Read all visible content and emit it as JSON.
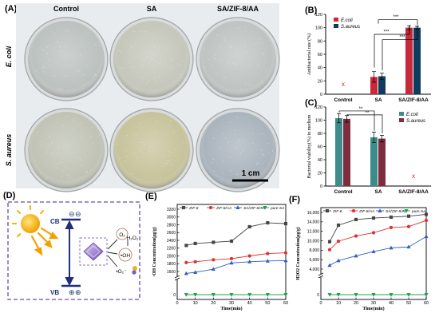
{
  "panelA": {
    "letter": "(A)",
    "columns": [
      "Control",
      "SA",
      "SA/ZIF-8/AA"
    ],
    "rows": [
      "E. coli",
      "S. aureus"
    ],
    "scale_label": "1 cm",
    "dish_tints": [
      [
        "#bcc2bf",
        "#c5c7bb",
        "#bfc4c3"
      ],
      [
        "#c0c3b5",
        "#c7c39c",
        "#aab4bd"
      ]
    ]
  },
  "chart_data": [
    {
      "id": "B",
      "letter": "(B)",
      "type": "bar",
      "ylabel": "Antibacterial rate (%)",
      "ylim": [
        0,
        120
      ],
      "yticks": [
        0,
        20,
        40,
        60,
        80,
        100,
        120
      ],
      "categories": [
        "Control",
        "SA",
        "SA/ZIF-8/AA"
      ],
      "series": [
        {
          "name": "E.coli",
          "color": "#c9283a",
          "values": [
            0,
            26,
            100
          ],
          "errors": [
            0,
            8,
            3
          ]
        },
        {
          "name": "S.aureus",
          "color": "#0f3c5e",
          "values": [
            0,
            27,
            100
          ],
          "errors": [
            0,
            5,
            2
          ]
        }
      ],
      "missing_marker": {
        "label": "x",
        "category": "Control"
      },
      "significance": [
        "***",
        "***",
        "***"
      ],
      "legend": "top-left"
    },
    {
      "id": "C",
      "letter": "(C)",
      "type": "bar",
      "ylabel": "Bacterial viability(%) in medium",
      "ylim": [
        0,
        120
      ],
      "yticks": [
        0,
        20,
        40,
        60,
        80,
        100,
        120
      ],
      "categories": [
        "Control",
        "SA",
        "SA/ZIF-8/AA"
      ],
      "series": [
        {
          "name": "E.coli",
          "color": "#3d8c8a",
          "values": [
            103,
            74,
            0
          ],
          "errors": [
            7,
            8,
            0
          ]
        },
        {
          "name": "S.aureus",
          "color": "#7d2d3d",
          "values": [
            102,
            72,
            0
          ],
          "errors": [
            5,
            5,
            0
          ]
        }
      ],
      "missing_marker": {
        "label": "x",
        "category": "SA/ZIF-8/AA"
      },
      "significance": [
        "**",
        "**"
      ],
      "legend": "top-right"
    },
    {
      "id": "E",
      "letter": "(E)",
      "type": "line",
      "xlabel": "Time(min)",
      "ylabel": "·OH Concentration(μg/g)",
      "x": [
        5,
        10,
        20,
        30,
        40,
        50,
        60
      ],
      "xticks": [
        0,
        10,
        20,
        30,
        40,
        50,
        60
      ],
      "yticks": [
        1600,
        1800,
        2000,
        2200,
        2400,
        2600,
        2800,
        3000,
        3200
      ],
      "axis_break": true,
      "series": [
        {
          "name": "ZIF-8",
          "color": "#444444",
          "marker": "square",
          "values": [
            2270,
            2320,
            2350,
            2380,
            2750,
            2850,
            2830
          ]
        },
        {
          "name": "ZIF-8/AA",
          "color": "#e03030",
          "marker": "circle",
          "values": [
            1830,
            1850,
            1900,
            1930,
            2000,
            2060,
            2080
          ]
        },
        {
          "name": "SA/ZIF-8/AA",
          "color": "#3060c0",
          "marker": "triangle",
          "values": [
            1550,
            1580,
            1660,
            1820,
            1850,
            1870,
            1880
          ]
        },
        {
          "name": "pure SA",
          "color": "#20a050",
          "marker": "triangle-down",
          "values": [
            0,
            0,
            0,
            0,
            0,
            0,
            0
          ]
        }
      ],
      "legend": "top"
    },
    {
      "id": "F",
      "letter": "(F)",
      "type": "line",
      "xlabel": "Time(min)",
      "ylabel": "H2O2 Concentration(μg/g)",
      "x": [
        5,
        10,
        20,
        30,
        40,
        50,
        60
      ],
      "xticks": [
        0,
        10,
        20,
        30,
        40,
        50,
        60
      ],
      "yticks": [
        4000,
        6000,
        8000,
        10000,
        12000,
        14000,
        16000
      ],
      "axis_break": true,
      "series": [
        {
          "name": "ZIF-8",
          "color": "#444444",
          "marker": "square",
          "values": [
            9800,
            13300,
            14500,
            14800,
            15000,
            15200,
            15600
          ]
        },
        {
          "name": "ZIF-8/AA",
          "color": "#e03030",
          "marker": "circle",
          "values": [
            8100,
            9900,
            11000,
            11700,
            12800,
            13000,
            14300
          ]
        },
        {
          "name": "SA/ZIF-8/AA",
          "color": "#3060c0",
          "marker": "triangle",
          "values": [
            4800,
            5800,
            6800,
            7700,
            8500,
            8700,
            10900
          ]
        },
        {
          "name": "pure SA",
          "color": "#20a050",
          "marker": "triangle-down",
          "values": [
            0,
            0,
            0,
            0,
            0,
            0,
            0
          ]
        }
      ],
      "legend": "top"
    }
  ],
  "panelD": {
    "letter": "(D)",
    "cb_label": "CB",
    "vb_label": "VB",
    "electron_symbol": "⊖",
    "hole_symbol": "⊕",
    "species": [
      "O₂",
      "•OH",
      "H₂O₂",
      "•O₂⁻"
    ],
    "colors": {
      "sun": "#f2b400",
      "frame": "#6a4ca0",
      "level": "#1f2f7a",
      "crystal": "#8f6fc7"
    }
  }
}
